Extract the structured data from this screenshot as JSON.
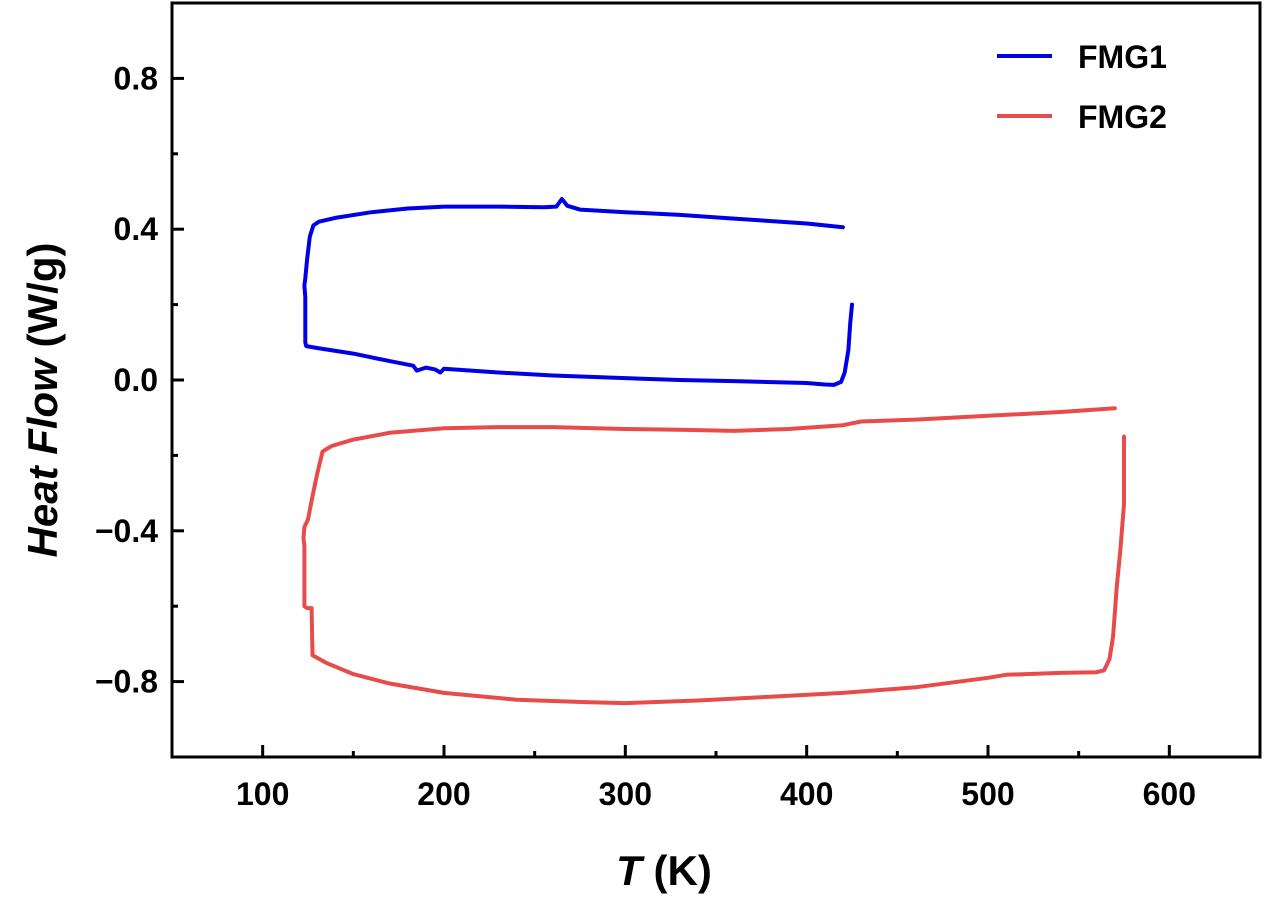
{
  "chart_data": {
    "type": "line",
    "title": "",
    "xlabel_var": "T",
    "xlabel_unit": " (K)",
    "ylabel_var": "Heat Flow",
    "ylabel_unit": " (W/g)",
    "xlim": [
      50,
      650
    ],
    "ylim": [
      -1.0,
      1.0
    ],
    "x_ticks": [
      100,
      200,
      300,
      400,
      500,
      600
    ],
    "x_tick_labels": [
      "100",
      "200",
      "300",
      "400",
      "500",
      "600"
    ],
    "y_ticks": [
      0.8,
      0.4,
      0.0,
      -0.4,
      -0.8
    ],
    "y_tick_labels": [
      "0.8",
      "0.4",
      "0.0",
      "−0.4",
      "−0.8"
    ],
    "grid": false,
    "legend_position": "top-right",
    "series": [
      {
        "name": "FMG1",
        "color": "#0000e6",
        "points": [
          [
            420,
            0.405
          ],
          [
            400,
            0.415
          ],
          [
            360,
            0.428
          ],
          [
            330,
            0.438
          ],
          [
            300,
            0.445
          ],
          [
            275,
            0.452
          ],
          [
            268,
            0.462
          ],
          [
            265,
            0.48
          ],
          [
            262,
            0.46
          ],
          [
            255,
            0.458
          ],
          [
            230,
            0.46
          ],
          [
            200,
            0.46
          ],
          [
            180,
            0.455
          ],
          [
            160,
            0.445
          ],
          [
            140,
            0.43
          ],
          [
            131,
            0.42
          ],
          [
            128,
            0.41
          ],
          [
            126,
            0.38
          ],
          [
            124.5,
            0.32
          ],
          [
            123.5,
            0.27
          ],
          [
            123,
            0.25
          ],
          [
            123.2,
            0.24
          ],
          [
            123.5,
            0.22
          ],
          [
            123.5,
            0.1
          ],
          [
            124,
            0.09
          ],
          [
            130,
            0.085
          ],
          [
            150,
            0.07
          ],
          [
            170,
            0.05
          ],
          [
            183,
            0.038
          ],
          [
            185,
            0.025
          ],
          [
            190,
            0.033
          ],
          [
            195,
            0.028
          ],
          [
            198,
            0.02
          ],
          [
            200,
            0.03
          ],
          [
            230,
            0.02
          ],
          [
            260,
            0.012
          ],
          [
            300,
            0.005
          ],
          [
            330,
            0.0
          ],
          [
            360,
            -0.003
          ],
          [
            400,
            -0.008
          ],
          [
            410,
            -0.012
          ],
          [
            415,
            -0.013
          ],
          [
            419,
            -0.005
          ],
          [
            421,
            0.02
          ],
          [
            423,
            0.08
          ],
          [
            424,
            0.15
          ],
          [
            425,
            0.2
          ]
        ]
      },
      {
        "name": "FMG2",
        "color": "#e84b4b",
        "points": [
          [
            570,
            -0.075
          ],
          [
            540,
            -0.085
          ],
          [
            500,
            -0.095
          ],
          [
            460,
            -0.105
          ],
          [
            430,
            -0.11
          ],
          [
            420,
            -0.12
          ],
          [
            390,
            -0.13
          ],
          [
            360,
            -0.135
          ],
          [
            330,
            -0.132
          ],
          [
            300,
            -0.13
          ],
          [
            260,
            -0.125
          ],
          [
            230,
            -0.125
          ],
          [
            200,
            -0.128
          ],
          [
            170,
            -0.14
          ],
          [
            150,
            -0.158
          ],
          [
            138,
            -0.175
          ],
          [
            133,
            -0.19
          ],
          [
            130,
            -0.25
          ],
          [
            127,
            -0.32
          ],
          [
            125,
            -0.37
          ],
          [
            123,
            -0.39
          ],
          [
            122.5,
            -0.42
          ],
          [
            123,
            -0.44
          ],
          [
            123,
            -0.6
          ],
          [
            124.5,
            -0.605
          ],
          [
            127,
            -0.605
          ],
          [
            127.5,
            -0.73
          ],
          [
            135,
            -0.75
          ],
          [
            150,
            -0.78
          ],
          [
            170,
            -0.805
          ],
          [
            200,
            -0.83
          ],
          [
            240,
            -0.848
          ],
          [
            280,
            -0.855
          ],
          [
            300,
            -0.857
          ],
          [
            340,
            -0.85
          ],
          [
            380,
            -0.84
          ],
          [
            420,
            -0.83
          ],
          [
            460,
            -0.815
          ],
          [
            500,
            -0.79
          ],
          [
            510,
            -0.782
          ],
          [
            540,
            -0.777
          ],
          [
            560,
            -0.775
          ],
          [
            564,
            -0.77
          ],
          [
            567,
            -0.74
          ],
          [
            569,
            -0.68
          ],
          [
            571,
            -0.55
          ],
          [
            573,
            -0.45
          ],
          [
            574.5,
            -0.36
          ],
          [
            575,
            -0.33
          ],
          [
            575,
            -0.15
          ]
        ]
      }
    ]
  }
}
